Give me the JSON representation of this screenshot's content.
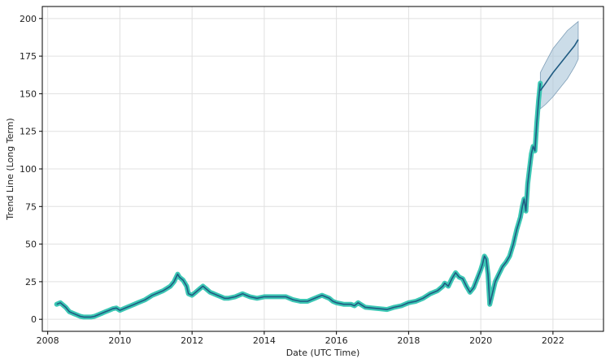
{
  "chart_data": {
    "type": "line",
    "title": "",
    "xlabel": "Date (UTC Time)",
    "ylabel": "Trend Line (Long Term)",
    "xlim": [
      2007.85,
      2023.4
    ],
    "ylim": [
      -8,
      208
    ],
    "grid": true,
    "x_ticks": [
      2008,
      2010,
      2012,
      2014,
      2016,
      2018,
      2020,
      2022
    ],
    "y_ticks": [
      0,
      25,
      50,
      75,
      100,
      125,
      150,
      175,
      200
    ],
    "colors": {
      "line": "#1f5b82",
      "highlight": "#3cc7b4",
      "band": "#a9c4d8",
      "grid": "#e0e0e0",
      "frame": "#000000"
    },
    "series": [
      {
        "x": [
          2008.25,
          2008.35,
          2008.5,
          2008.6,
          2008.7,
          2008.8,
          2008.9,
          2009.0,
          2009.1,
          2009.2,
          2009.3,
          2009.4,
          2009.5,
          2009.6,
          2009.7,
          2009.8,
          2009.9,
          2010.0,
          2010.2,
          2010.4,
          2010.5,
          2010.7,
          2010.9,
          2011.0,
          2011.2,
          2011.4,
          2011.5,
          2011.6,
          2011.65,
          2011.75,
          2011.85,
          2011.9,
          2012.0,
          2012.1,
          2012.2,
          2012.3,
          2012.4,
          2012.5,
          2012.6,
          2012.7,
          2012.8,
          2012.9,
          2013.0,
          2013.2,
          2013.4,
          2013.5,
          2013.6,
          2013.8,
          2014.0,
          2014.2,
          2014.4,
          2014.6,
          2014.8,
          2015.0,
          2015.2,
          2015.4,
          2015.5,
          2015.6,
          2015.8,
          2015.9,
          2016.0,
          2016.2,
          2016.4,
          2016.5,
          2016.6,
          2016.8,
          2017.0,
          2017.2,
          2017.4,
          2017.6,
          2017.8,
          2018.0,
          2018.2,
          2018.4,
          2018.6,
          2018.8,
          2018.95,
          2019.0,
          2019.1,
          2019.2,
          2019.3,
          2019.4,
          2019.5,
          2019.6,
          2019.7,
          2019.8,
          2019.9,
          2020.0,
          2020.05,
          2020.1,
          2020.15,
          2020.2,
          2020.25,
          2020.3,
          2020.4,
          2020.5,
          2020.6,
          2020.7,
          2020.8,
          2020.9,
          2021.0,
          2021.1,
          2021.15,
          2021.2,
          2021.25,
          2021.3,
          2021.35,
          2021.4,
          2021.45,
          2021.5,
          2021.55,
          2021.6,
          2021.65
        ],
        "y": [
          10,
          11,
          8,
          5,
          4,
          3,
          2,
          1.5,
          1.5,
          1.5,
          2,
          3,
          4,
          5,
          6,
          7,
          7.5,
          6,
          8,
          10,
          11,
          13,
          16,
          17,
          19,
          22,
          25,
          30,
          28,
          26,
          22,
          17,
          16,
          18,
          20,
          22,
          20,
          18,
          17,
          16,
          15,
          14,
          14,
          15,
          17,
          16,
          15,
          14,
          15,
          15,
          15,
          15,
          13,
          12,
          12,
          14,
          15,
          16,
          14,
          12,
          11,
          10,
          10,
          9,
          11,
          8,
          7.5,
          7,
          6.5,
          8,
          9,
          11,
          12,
          14,
          17,
          19,
          22,
          24,
          22,
          27,
          31,
          28,
          27,
          22,
          18,
          21,
          27,
          33,
          37,
          42,
          40,
          30,
          10,
          15,
          25,
          30,
          35,
          38,
          42,
          50,
          60,
          68,
          75,
          80,
          72,
          90,
          100,
          110,
          115,
          112,
          130,
          145,
          157
        ]
      },
      {
        "x": [
          2021.65,
          2021.8,
          2022.0,
          2022.2,
          2022.4,
          2022.6,
          2022.7
        ],
        "y": [
          152,
          157,
          164,
          170,
          176,
          182,
          186
        ],
        "lower": [
          140,
          143,
          148,
          154,
          160,
          168,
          173
        ],
        "upper": [
          164,
          171,
          180,
          186,
          192,
          196,
          198
        ]
      }
    ]
  }
}
